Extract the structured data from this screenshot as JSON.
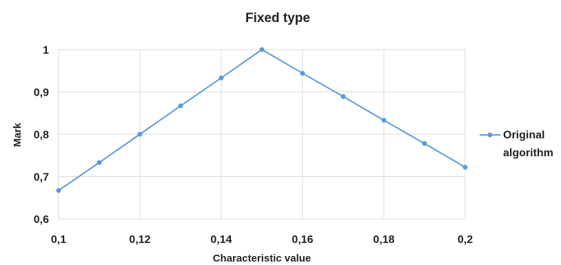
{
  "chart_data": {
    "type": "line",
    "title": "Fixed type",
    "xlabel": "Characteristic value",
    "ylabel": "Mark",
    "xlim": [
      0.1,
      0.2
    ],
    "ylim": [
      0.6,
      1.0
    ],
    "x_ticks": [
      "0,1",
      "0,12",
      "0,14",
      "0,16",
      "0,18",
      "0,2"
    ],
    "y_ticks": [
      "0,6",
      "0,7",
      "0,8",
      "0,9",
      "1"
    ],
    "grid": true,
    "legend_position": "right",
    "series": [
      {
        "name": "Original algorithm",
        "name_lines": [
          "Original",
          "algorithm"
        ],
        "color": "#5b9bd5",
        "x": [
          0.1,
          0.11,
          0.12,
          0.13,
          0.14,
          0.15,
          0.16,
          0.17,
          0.18,
          0.19,
          0.2
        ],
        "y": [
          0.667,
          0.733,
          0.8,
          0.867,
          0.933,
          1.0,
          0.944,
          0.889,
          0.833,
          0.778,
          0.722
        ]
      }
    ]
  }
}
